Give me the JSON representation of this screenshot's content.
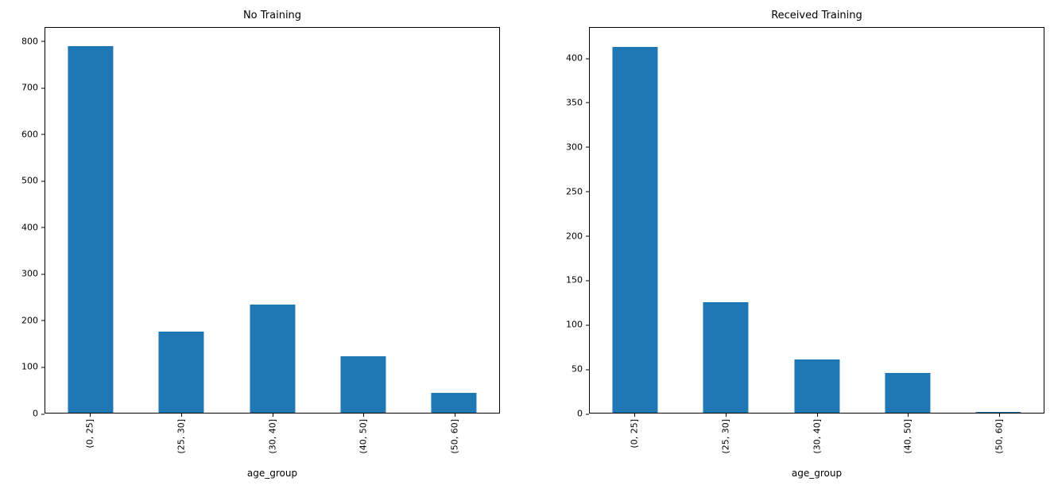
{
  "chart_data": [
    {
      "type": "bar",
      "title": "No Training",
      "categories": [
        "(0, 25]",
        "(25, 30]",
        "(30, 40]",
        "(40, 50]",
        "(50, 60]"
      ],
      "values": [
        790,
        175,
        233,
        122,
        43
      ],
      "xlabel": "age_group",
      "ylabel": "",
      "ylim": [
        0,
        830
      ],
      "yticks": [
        0,
        100,
        200,
        300,
        400,
        500,
        600,
        700,
        800
      ],
      "bar_color": "#1f77b4",
      "bar_width_fraction": 0.5,
      "grid": false,
      "legend": "none"
    },
    {
      "type": "bar",
      "title": "Received Training",
      "categories": [
        "(0, 25]",
        "(25, 30]",
        "(30, 40]",
        "(40, 50]",
        "(50, 60]"
      ],
      "values": [
        413,
        125,
        60,
        45,
        1
      ],
      "xlabel": "age_group",
      "ylabel": "",
      "ylim": [
        0,
        435
      ],
      "yticks": [
        0,
        50,
        100,
        150,
        200,
        250,
        300,
        350,
        400
      ],
      "bar_color": "#1f77b4",
      "bar_width_fraction": 0.5,
      "grid": false,
      "legend": "none"
    }
  ]
}
